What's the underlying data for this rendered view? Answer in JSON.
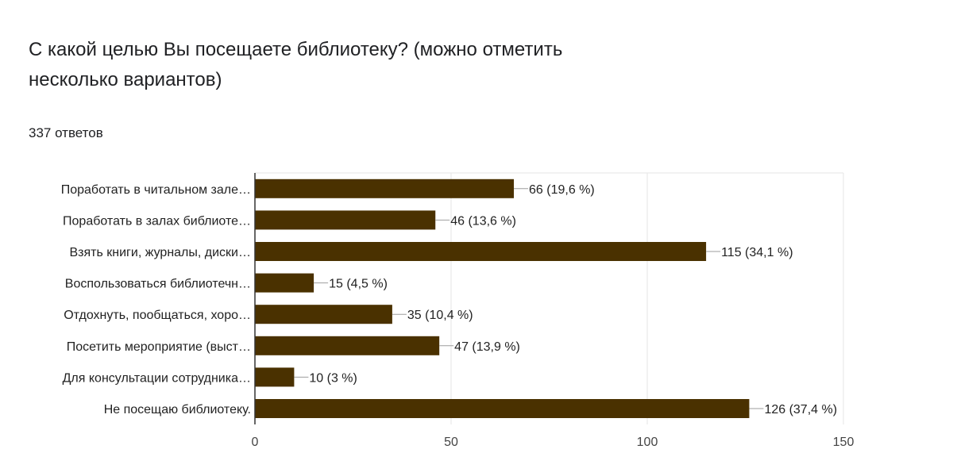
{
  "header": {
    "title": "С какой целью Вы посещаете библиотеку? (можно отметить несколько вариантов)",
    "responses": "337 ответов"
  },
  "colors": {
    "bar": "#4a3100",
    "grid": "#e6e6e6",
    "axis": "#333333",
    "leader": "#9e9e9e"
  },
  "chart_data": {
    "type": "bar",
    "orientation": "horizontal",
    "categories": [
      "Поработать в читальном зале…",
      "Поработать в залах библиоте…",
      "Взять книги, журналы, диски…",
      "Воспользоваться библиотечн…",
      "Отдохнуть, пообщаться, хоро…",
      "Посетить мероприятие (выст…",
      "Для консультации сотрудника…",
      "Не посещаю библиотеку."
    ],
    "values": [
      66,
      46,
      115,
      15,
      35,
      47,
      10,
      126
    ],
    "value_labels": [
      "66 (19,6 %)",
      "46 (13,6 %)",
      "115 (34,1 %)",
      "15 (4,5 %)",
      "35 (10,4 %)",
      "47 (13,9 %)",
      "10 (3 %)",
      "126 (37,4 %)"
    ],
    "xlim": [
      0,
      150
    ],
    "xticks": [
      0,
      50,
      100,
      150
    ],
    "grid": true,
    "legend": "none"
  }
}
